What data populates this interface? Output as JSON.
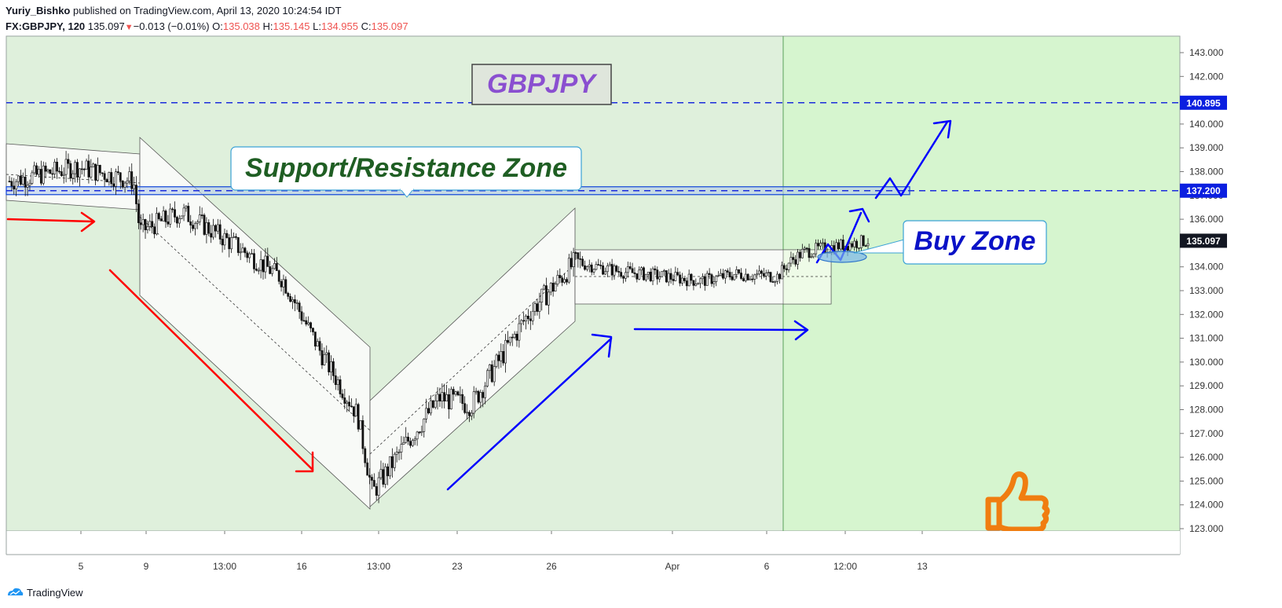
{
  "header": {
    "author": "Yuriy_Bishko",
    "published": "published on TradingView.com, April 13, 2020 10:24:54 IDT",
    "symbol": "FX:GBPJPY, 120",
    "last": "135.097",
    "change": "−0.013 (−0.01%)",
    "o_label": "O:",
    "o_value": "135.038",
    "h_label": "H:",
    "h_value": "135.145",
    "l_label": "L:",
    "l_value": "134.955",
    "c_label": "C:",
    "c_value": "135.097"
  },
  "annotations": {
    "symbol_label": "GBPJPY",
    "sr_zone": "Support/Resistance Zone",
    "buy_zone": "Buy Zone"
  },
  "footer": {
    "brand": "TradingView"
  },
  "colors": {
    "bg_left": "#dff0dc",
    "bg_right": "#d6f5cf",
    "channel_fill": "#f8faf7",
    "red": "#ff0000",
    "blue": "#0000ff",
    "dashed": "#1a2bdc",
    "buy_text": "#0a12c7",
    "sr_text": "#1f5e23",
    "symbol_text": "#8a4fd0",
    "thumb": "#f07d10",
    "price_tag": "#131722",
    "level_tag": "#0b1fe0"
  },
  "chart_data": {
    "type": "candlestick",
    "symbol": "FX:GBPJPY",
    "interval": "120",
    "y_axis": {
      "range": [
        123,
        143
      ],
      "ticks": [
        "143.000",
        "142.000",
        "141.000",
        "140.000",
        "139.000",
        "138.000",
        "137.000",
        "136.000",
        "135.000",
        "134.000",
        "133.000",
        "132.000",
        "131.000",
        "130.000",
        "129.000",
        "128.000",
        "127.000",
        "126.000",
        "125.000",
        "124.000",
        "123.000"
      ]
    },
    "x_axis": {
      "ticks": [
        "5",
        "9",
        "13:00",
        "16",
        "13:00",
        "23",
        "26",
        "Apr",
        "6",
        "12:00",
        "13"
      ]
    },
    "levels": [
      {
        "value": 140.895,
        "label": "140.895",
        "style": "dashed"
      },
      {
        "value": 137.2,
        "label": "137.200",
        "style": "dashed"
      }
    ],
    "current_price": {
      "value": 135.097,
      "label": "135.097"
    },
    "path_points": [
      [
        "Mar 3",
        137.6
      ],
      [
        "Mar 5",
        138.2
      ],
      [
        "Mar 8",
        137.6
      ],
      [
        "Mar 9",
        135.5
      ],
      [
        "Mar 11",
        136.3
      ],
      [
        "Mar 13",
        134.9
      ],
      [
        "Mar 16",
        133.5
      ],
      [
        "Mar 18",
        130.3
      ],
      [
        "Mar 19",
        127.8
      ],
      [
        "Mar 19 13:00",
        124.5
      ],
      [
        "Mar 20",
        126.5
      ],
      [
        "Mar 23",
        128.5
      ],
      [
        "Mar 24",
        128.2
      ],
      [
        "Mar 26",
        132.0
      ],
      [
        "Mar 27",
        134.2
      ],
      [
        "Mar 30",
        133.8
      ],
      [
        "Apr 1",
        133.6
      ],
      [
        "Apr 3",
        133.4
      ],
      [
        "Apr 6",
        133.7
      ],
      [
        "Apr 8",
        133.6
      ],
      [
        "Apr 9",
        134.2
      ],
      [
        "Apr 10",
        134.6
      ],
      [
        "Apr 10 12:00",
        134.7
      ],
      [
        "Apr 13",
        135.1
      ]
    ]
  }
}
